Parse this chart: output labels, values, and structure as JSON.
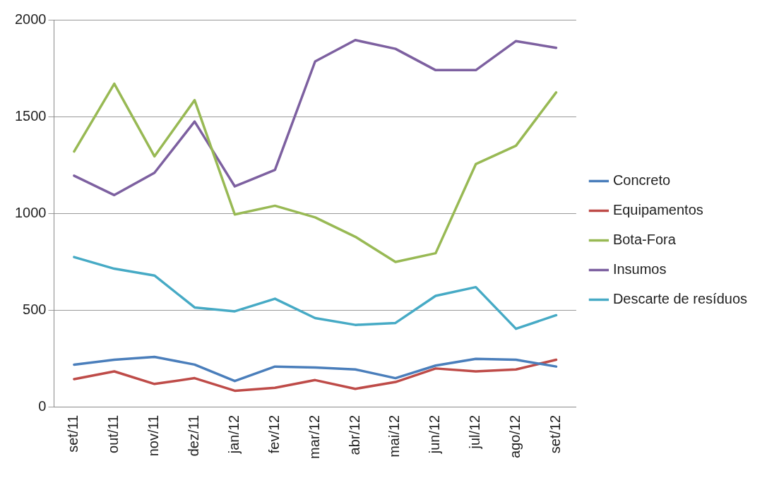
{
  "chart_data": {
    "type": "line",
    "categories": [
      "set/11",
      "out/11",
      "nov/11",
      "dez/11",
      "jan/12",
      "fev/12",
      "mar/12",
      "abr/12",
      "mai/12",
      "jun/12",
      "jul/12",
      "ago/12",
      "set/12"
    ],
    "series": [
      {
        "name": "Concreto",
        "color": "#4a7ebb",
        "values": [
          220,
          245,
          260,
          220,
          135,
          210,
          205,
          195,
          150,
          215,
          250,
          245,
          210
        ]
      },
      {
        "name": "Equipamentos",
        "color": "#be4b48",
        "values": [
          145,
          185,
          120,
          150,
          85,
          100,
          140,
          95,
          130,
          200,
          185,
          195,
          245
        ]
      },
      {
        "name": "Bota-Fora",
        "color": "#98b954",
        "values": [
          1320,
          1670,
          1295,
          1585,
          995,
          1040,
          980,
          880,
          750,
          795,
          1255,
          1350,
          1625
        ]
      },
      {
        "name": "Insumos",
        "color": "#7d60a0",
        "values": [
          1195,
          1095,
          1210,
          1475,
          1140,
          1225,
          1785,
          1895,
          1850,
          1740,
          1740,
          1890,
          1855
        ]
      },
      {
        "name": "Descarte de resíduos",
        "color": "#46aac5",
        "values": [
          775,
          715,
          680,
          515,
          495,
          560,
          460,
          425,
          435,
          575,
          620,
          405,
          475
        ]
      }
    ],
    "ylim": [
      0,
      2000
    ],
    "yticks": [
      0,
      500,
      1000,
      1500,
      2000
    ],
    "grid": "y",
    "legend": "right",
    "marker": "none",
    "line_style": "solid"
  }
}
